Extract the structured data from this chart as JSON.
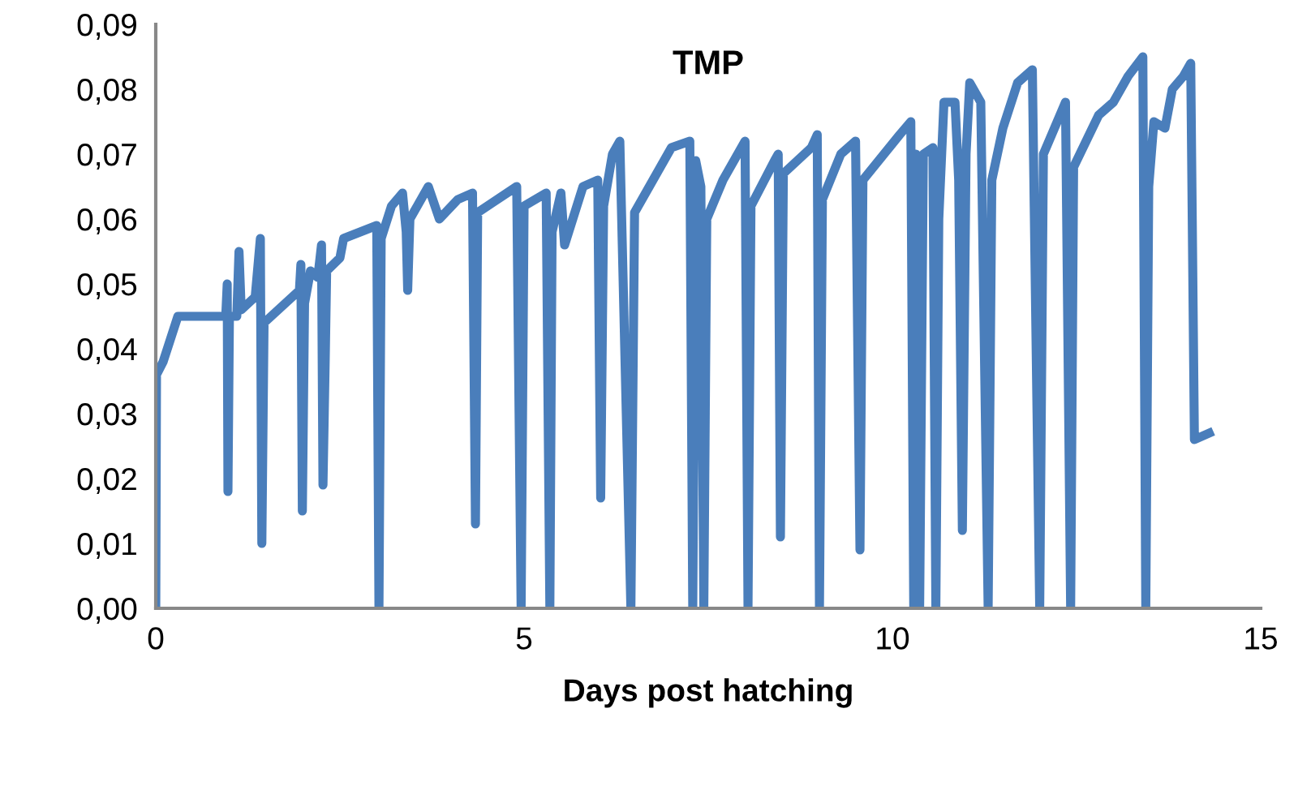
{
  "chart_data": {
    "type": "line",
    "title": "TMP",
    "xlabel": "Days post hatching",
    "xlim": [
      0,
      15
    ],
    "xticks": [
      0,
      5,
      10,
      15
    ],
    "ylim": [
      0,
      0.09
    ],
    "yticks": [
      {
        "value": 0,
        "label": "0,00"
      },
      {
        "value": 0.01,
        "label": "0,01"
      },
      {
        "value": 0.02,
        "label": "0,02"
      },
      {
        "value": 0.03,
        "label": "0,03"
      },
      {
        "value": 0.04,
        "label": "0,04"
      },
      {
        "value": 0.05,
        "label": "0,05"
      },
      {
        "value": 0.06,
        "label": "0,06"
      },
      {
        "value": 0.07,
        "label": "0,07"
      },
      {
        "value": 0.08,
        "label": "0,08"
      },
      {
        "value": 0.09,
        "label": "0,09"
      }
    ],
    "grid": false,
    "marker": "none",
    "line_style": "solid",
    "series": [
      {
        "color": "#4a7ebb",
        "x": [
          0,
          0.01,
          0.1,
          0.3,
          0.95,
          0.97,
          0.98,
          1.0,
          1.1,
          1.13,
          1.16,
          1.35,
          1.42,
          1.44,
          1.47,
          1.95,
          1.97,
          1.99,
          2.02,
          2.1,
          2.2,
          2.25,
          2.27,
          2.3,
          2.32,
          2.5,
          2.55,
          3.0,
          3.03,
          3.06,
          3.2,
          3.35,
          3.4,
          3.42,
          3.45,
          3.7,
          3.85,
          4.1,
          4.3,
          4.34,
          4.37,
          4.9,
          4.96,
          5.0,
          5.3,
          5.35,
          5.38,
          5.5,
          5.55,
          5.8,
          6.0,
          6.04,
          6.08,
          6.2,
          6.3,
          6.45,
          6.5,
          7.0,
          7.25,
          7.29,
          7.33,
          7.4,
          7.44,
          7.48,
          7.7,
          8.0,
          8.04,
          8.08,
          8.4,
          8.45,
          8.48,
          8.52,
          8.9,
          8.98,
          9.01,
          9.05,
          9.3,
          9.5,
          9.56,
          9.6,
          10.1,
          10.25,
          10.29,
          10.32,
          10.37,
          10.42,
          10.55,
          10.59,
          10.63,
          10.7,
          10.85,
          10.9,
          10.95,
          11.0,
          11.05,
          11.2,
          11.3,
          11.35,
          11.5,
          11.7,
          11.9,
          12.0,
          12.05,
          12.2,
          12.35,
          12.42,
          12.46,
          12.8,
          13.0,
          13.2,
          13.4,
          13.44,
          13.48,
          13.55,
          13.7,
          13.8,
          13.95,
          14.05,
          14.1,
          14.3
        ],
        "values": [
          0,
          0.036,
          0.038,
          0.045,
          0.045,
          0.05,
          0.018,
          0.045,
          0.045,
          0.055,
          0.046,
          0.048,
          0.057,
          0.01,
          0.044,
          0.049,
          0.053,
          0.015,
          0.047,
          0.052,
          0.051,
          0.056,
          0.019,
          0.038,
          0.052,
          0.054,
          0.057,
          0.059,
          0.0,
          0.057,
          0.062,
          0.064,
          0.058,
          0.049,
          0.06,
          0.065,
          0.06,
          0.063,
          0.064,
          0.013,
          0.061,
          0.065,
          0.0,
          0.062,
          0.064,
          0.0,
          0.058,
          0.064,
          0.056,
          0.065,
          0.066,
          0.017,
          0.062,
          0.07,
          0.072,
          0.0,
          0.061,
          0.071,
          0.072,
          0.0,
          0.069,
          0.065,
          0.0,
          0.06,
          0.066,
          0.072,
          0.0,
          0.062,
          0.069,
          0.07,
          0.011,
          0.067,
          0.071,
          0.073,
          0.0,
          0.063,
          0.07,
          0.072,
          0.009,
          0.066,
          0.073,
          0.075,
          0.0,
          0.07,
          0.0,
          0.07,
          0.071,
          0.0,
          0.06,
          0.078,
          0.078,
          0.066,
          0.012,
          0.07,
          0.081,
          0.078,
          0.0,
          0.066,
          0.074,
          0.081,
          0.083,
          0.0,
          0.07,
          0.074,
          0.078,
          0.0,
          0.068,
          0.076,
          0.078,
          0.082,
          0.085,
          0.0,
          0.065,
          0.075,
          0.074,
          0.08,
          0.082,
          0.084,
          0.026,
          0.027
        ]
      }
    ]
  }
}
